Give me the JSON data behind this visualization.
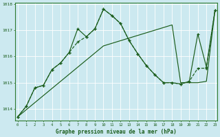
{
  "xlabel": "Graphe pression niveau de la mer (hPa)",
  "xlim": [
    -0.3,
    23.3
  ],
  "ylim": [
    1013.55,
    1018.05
  ],
  "yticks": [
    1014,
    1015,
    1016,
    1017,
    1018
  ],
  "xticks": [
    0,
    1,
    2,
    3,
    4,
    5,
    6,
    7,
    8,
    9,
    10,
    11,
    12,
    13,
    14,
    15,
    16,
    17,
    18,
    19,
    20,
    21,
    22,
    23
  ],
  "bg_color": "#cce9f0",
  "line_color_dark": "#1a5c1a",
  "line_color_med": "#2d7a2d",
  "grid_color": "#e8f8fc",
  "line_straight": [
    1013.7,
    1013.97,
    1014.24,
    1014.51,
    1014.78,
    1015.05,
    1015.32,
    1015.59,
    1015.86,
    1016.13,
    1016.4,
    1016.5,
    1016.6,
    1016.7,
    1016.8,
    1016.9,
    1017.0,
    1017.1,
    1017.2,
    1015.0,
    1015.0,
    1015.0,
    1015.05,
    1017.75
  ],
  "line_peak1": [
    1013.7,
    1014.1,
    1014.8,
    1014.9,
    1015.5,
    1015.75,
    1016.15,
    1016.55,
    1016.75,
    1017.05,
    1017.8,
    1017.55,
    1017.25,
    1016.6,
    1016.1,
    1015.65,
    1015.3,
    1015.0,
    1015.0,
    1014.95,
    1015.05,
    1015.55,
    1015.55,
    1017.75
  ],
  "line_peak2": [
    1013.7,
    1014.1,
    1014.8,
    1014.9,
    1015.5,
    1015.75,
    1016.15,
    1017.05,
    1016.75,
    1017.05,
    1017.8,
    1017.55,
    1017.25,
    1016.6,
    1016.1,
    1015.65,
    1015.3,
    1015.0,
    1015.0,
    1014.95,
    1015.05,
    1016.85,
    1015.6,
    1017.75
  ]
}
